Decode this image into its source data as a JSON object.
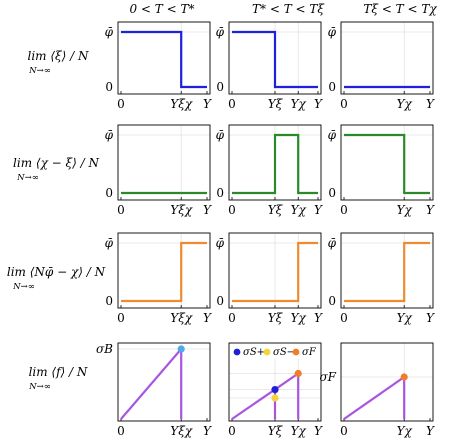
{
  "columns": [
    {
      "title": "0 < T < T*"
    },
    {
      "title": "T* < T < Tξ"
    },
    {
      "title": "Tξ < T < Tχ"
    }
  ],
  "rows": [
    {
      "label_main": "lim ⟨ξ⟩ / N",
      "label_sub": "N→∞"
    },
    {
      "label_main": "lim ⟨χ − ξ⟩ / N",
      "label_sub": "N→∞"
    },
    {
      "label_main": "lim ⟨Nφ̄ − χ⟩ / N",
      "label_sub": "N→∞"
    },
    {
      "label_main": "lim ⟨f⟩ / N",
      "label_sub": "N→∞"
    }
  ],
  "legend": {
    "items": [
      {
        "label": "σS+",
        "color": "#1f1fd6"
      },
      {
        "label": "σS−",
        "color": "#f5d33a"
      },
      {
        "label": "σF",
        "color": "#ef7d2c"
      }
    ]
  },
  "colors": {
    "blue": "#1f1fe0",
    "green": "#2a8a2a",
    "orange": "#f08a30",
    "purple": "#a855e0",
    "light_blue_dot": "#4fa8e8"
  },
  "chart_data": [
    {
      "type": "line",
      "row": 0,
      "col": 0,
      "color": "blue",
      "x_ticks": [
        "0",
        "Yξχ",
        "Y"
      ],
      "y_ticks": [
        "0",
        "φ̄"
      ],
      "series": [
        {
          "x": [
            0,
            0.7,
            0.7,
            1
          ],
          "y": [
            1,
            1,
            0,
            0
          ]
        }
      ]
    },
    {
      "type": "line",
      "row": 0,
      "col": 1,
      "color": "blue",
      "x_ticks": [
        "0",
        "Yξ",
        "Yχ",
        "Y"
      ],
      "y_ticks": [
        "0",
        "φ̄"
      ],
      "series": [
        {
          "x": [
            0,
            0.5,
            0.5,
            1
          ],
          "y": [
            1,
            1,
            0,
            0
          ]
        }
      ]
    },
    {
      "type": "line",
      "row": 0,
      "col": 2,
      "color": "blue",
      "x_ticks": [
        "0",
        "Yχ",
        "Y"
      ],
      "y_ticks": [
        "0",
        "φ̄"
      ],
      "series": [
        {
          "x": [
            0,
            1
          ],
          "y": [
            0,
            0
          ]
        }
      ]
    },
    {
      "type": "line",
      "row": 1,
      "col": 0,
      "color": "green",
      "x_ticks": [
        "0",
        "Yξχ",
        "Y"
      ],
      "y_ticks": [
        "0",
        "φ̄"
      ],
      "series": [
        {
          "x": [
            0,
            1
          ],
          "y": [
            0,
            0
          ]
        }
      ]
    },
    {
      "type": "line",
      "row": 1,
      "col": 1,
      "color": "green",
      "x_ticks": [
        "0",
        "Yξ",
        "Yχ",
        "Y"
      ],
      "y_ticks": [
        "0",
        "φ̄"
      ],
      "series": [
        {
          "x": [
            0,
            0.5,
            0.5,
            0.77,
            0.77,
            1
          ],
          "y": [
            0,
            0,
            1,
            1,
            0,
            0
          ]
        }
      ]
    },
    {
      "type": "line",
      "row": 1,
      "col": 2,
      "color": "green",
      "x_ticks": [
        "0",
        "Yχ",
        "Y"
      ],
      "y_ticks": [
        "0",
        "φ̄"
      ],
      "series": [
        {
          "x": [
            0,
            0.7,
            0.7,
            1
          ],
          "y": [
            1,
            1,
            0,
            0
          ]
        }
      ]
    },
    {
      "type": "line",
      "row": 2,
      "col": 0,
      "color": "orange",
      "x_ticks": [
        "0",
        "Yξχ",
        "Y"
      ],
      "y_ticks": [
        "0",
        "φ̄"
      ],
      "series": [
        {
          "x": [
            0,
            0.7,
            0.7,
            1
          ],
          "y": [
            0,
            0,
            1,
            1
          ]
        }
      ]
    },
    {
      "type": "line",
      "row": 2,
      "col": 1,
      "color": "orange",
      "x_ticks": [
        "0",
        "Yξ",
        "Yχ",
        "Y"
      ],
      "y_ticks": [
        "0",
        "φ̄"
      ],
      "series": [
        {
          "x": [
            0,
            0.77,
            0.77,
            1
          ],
          "y": [
            0,
            0,
            1,
            1
          ]
        }
      ]
    },
    {
      "type": "line",
      "row": 2,
      "col": 2,
      "color": "orange",
      "x_ticks": [
        "0",
        "Yχ",
        "Y"
      ],
      "y_ticks": [
        "0",
        "φ̄"
      ],
      "series": [
        {
          "x": [
            0,
            0.7,
            0.7,
            1
          ],
          "y": [
            0,
            0,
            1,
            1
          ]
        }
      ]
    },
    {
      "type": "line",
      "row": 3,
      "col": 0,
      "color": "purple",
      "x_ticks": [
        "0",
        "Yξχ",
        "Y"
      ],
      "y_ticks": [
        "σB"
      ],
      "series": [
        {
          "x": [
            0,
            0.7,
            0.7
          ],
          "y": [
            0,
            1,
            0
          ]
        }
      ],
      "points": [
        {
          "x": 0.7,
          "y": 1,
          "color": "light_blue_dot"
        }
      ]
    },
    {
      "type": "line",
      "row": 3,
      "col": 1,
      "color": "purple",
      "x_ticks": [
        "0",
        "Yξ",
        "Yχ",
        "Y"
      ],
      "y_ticks": [],
      "series": [
        {
          "x": [
            0,
            0.77,
            0.77
          ],
          "y": [
            0,
            0.65,
            0
          ]
        },
        {
          "x": [
            0.5,
            0.5
          ],
          "y": [
            0,
            0.42
          ]
        }
      ],
      "points": [
        {
          "x": 0.5,
          "y": 0.42,
          "color": "blue"
        },
        {
          "x": 0.5,
          "y": 0.3,
          "color": "yellow"
        },
        {
          "x": 0.77,
          "y": 0.65,
          "color": "orange"
        }
      ]
    },
    {
      "type": "line",
      "row": 3,
      "col": 2,
      "color": "purple",
      "x_ticks": [
        "0",
        "Yχ",
        "Y"
      ],
      "y_ticks": [
        "σF"
      ],
      "series": [
        {
          "x": [
            0,
            0.7,
            0.7
          ],
          "y": [
            0,
            0.6,
            0
          ]
        }
      ],
      "points": [
        {
          "x": 0.7,
          "y": 0.6,
          "color": "orange"
        }
      ]
    }
  ]
}
